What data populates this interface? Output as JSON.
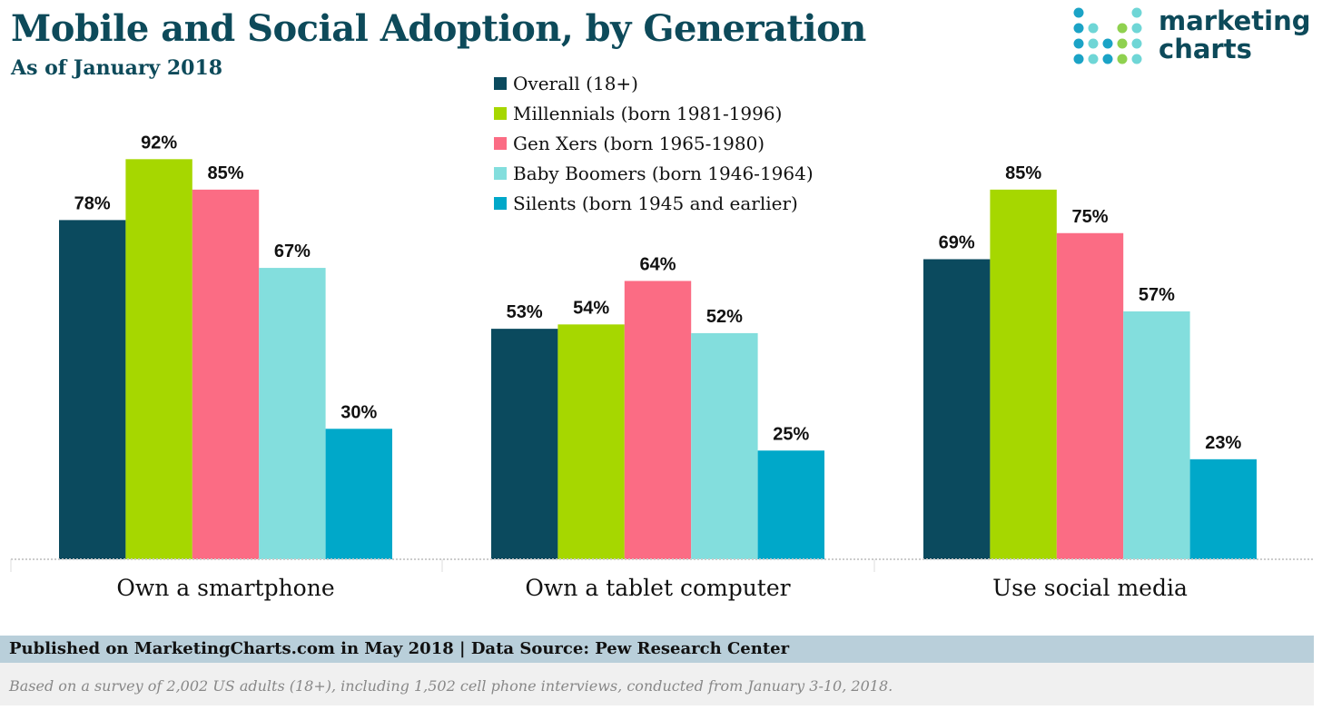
{
  "chart_data": {
    "type": "bar",
    "title": "Mobile and Social Adoption, by Generation",
    "subtitle": "As of January 2018",
    "categories": [
      "Own a smartphone",
      "Own a tablet computer",
      "Use social media"
    ],
    "series": [
      {
        "name": "Overall (18+)",
        "color": "#0b4a5e",
        "values": [
          78,
          53,
          69
        ]
      },
      {
        "name": "Millennials (born 1981-1996)",
        "color": "#a6d700",
        "values": [
          92,
          54,
          85
        ]
      },
      {
        "name": "Gen Xers (born 1965-1980)",
        "color": "#fb6c84",
        "values": [
          85,
          64,
          75
        ]
      },
      {
        "name": "Baby Boomers (born 1946-1964)",
        "color": "#83dedd",
        "values": [
          67,
          52,
          57
        ]
      },
      {
        "name": "Silents (born 1945 and earlier)",
        "color": "#00a8c9",
        "values": [
          30,
          25,
          23
        ]
      }
    ],
    "value_suffix": "%",
    "ylim": [
      0,
      100
    ],
    "grid": false,
    "legend_position": "top-center"
  },
  "logo": {
    "line1": "marketing",
    "line2": "charts"
  },
  "footer": {
    "published": "Published on MarketingCharts.com in May 2018 | Data Source: Pew Research Center",
    "note": "Based on a survey of 2,002 US adults (18+), including 1,502 cell phone interviews, conducted from January 3-10, 2018."
  }
}
